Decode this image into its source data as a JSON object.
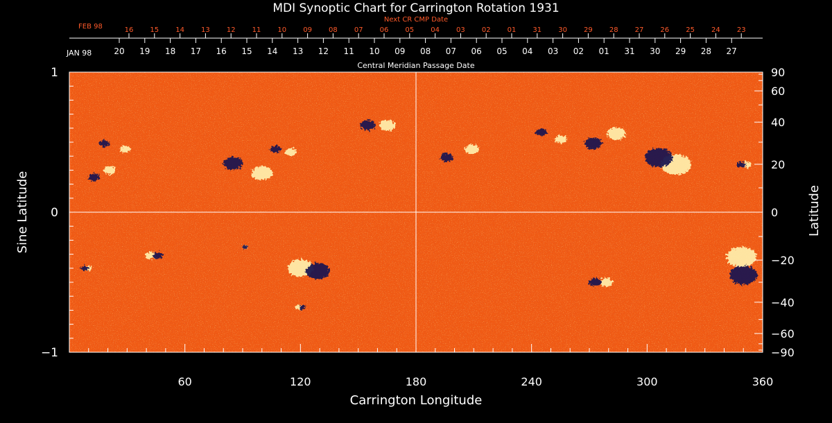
{
  "chart_data": {
    "type": "heatmap",
    "title": "MDI Synoptic Chart for Carrington Rotation 1931",
    "xlabel": "Carrington Longitude",
    "ylabel_left": "Sine Latitude",
    "ylabel_right": "Latitude",
    "xlim": [
      0,
      360
    ],
    "ylim": [
      -1,
      1
    ],
    "x_ticks": [
      60,
      120,
      180,
      240,
      300,
      360
    ],
    "y_left_ticks": [
      {
        "value": 1,
        "label": "1"
      },
      {
        "value": 0,
        "label": "0"
      },
      {
        "value": -1,
        "label": "−1"
      }
    ],
    "y_right_ticks": [
      {
        "value": 90,
        "label": "90"
      },
      {
        "value": 60,
        "label": "60"
      },
      {
        "value": 40,
        "label": "40"
      },
      {
        "value": 20,
        "label": "20"
      },
      {
        "value": 0,
        "label": "0"
      },
      {
        "value": -20,
        "label": "−20"
      },
      {
        "value": -40,
        "label": "−40"
      },
      {
        "value": -60,
        "label": "−60"
      },
      {
        "value": -90,
        "label": "−90"
      }
    ],
    "crosshair": {
      "longitude": 180,
      "sine_latitude": 0
    },
    "date_axis_label": "Central Meridian Passage Date",
    "next_cr_label": "Next CR CMP Date",
    "cmp_month_label": "JAN 98",
    "next_cr_month_label": "FEB 98",
    "cmp_dates": [
      "20",
      "19",
      "18",
      "17",
      "16",
      "15",
      "14",
      "13",
      "12",
      "11",
      "10",
      "09",
      "08",
      "07",
      "06",
      "05",
      "04",
      "03",
      "02",
      "01",
      "31",
      "30",
      "29",
      "28",
      "27"
    ],
    "next_cr_dates": [
      "16",
      "15",
      "14",
      "13",
      "12",
      "11",
      "10",
      "09",
      "08",
      "07",
      "06",
      "05",
      "04",
      "03",
      "02",
      "01",
      "31",
      "30",
      "29",
      "28",
      "27",
      "26",
      "25",
      "24",
      "23"
    ],
    "colors": {
      "background": "#000000",
      "field": "#f05a14",
      "positive": "#fff3b0",
      "negative": "#1a1850",
      "axes": "#ffffff",
      "next_cr": "#ff5a2a"
    },
    "active_regions": [
      {
        "lon": 17,
        "sinlat": 0.27,
        "pos_dx": 4,
        "pos_dy": 0.03,
        "neg_dx": -4,
        "neg_dy": -0.02,
        "size": 1.0
      },
      {
        "lon": 26,
        "sinlat": 0.45,
        "pos_dx": 3,
        "pos_dy": 0.0,
        "neg_dx": -8,
        "neg_dy": 0.04,
        "size": 0.9
      },
      {
        "lon": 97,
        "sinlat": 0.3,
        "pos_dx": 3,
        "pos_dy": -0.02,
        "neg_dx": -12,
        "neg_dy": 0.05,
        "size": 1.8
      },
      {
        "lon": 113,
        "sinlat": 0.43,
        "pos_dx": 2,
        "pos_dy": 0.0,
        "neg_dx": -6,
        "neg_dy": 0.02,
        "size": 1.0
      },
      {
        "lon": 165,
        "sinlat": 0.62,
        "pos_dx": 0,
        "pos_dy": 0.0,
        "neg_dx": -10,
        "neg_dy": 0.0,
        "size": 1.4
      },
      {
        "lon": 206,
        "sinlat": 0.47,
        "pos_dx": 3,
        "pos_dy": -0.02,
        "neg_dx": -10,
        "neg_dy": -0.08,
        "size": 1.2
      },
      {
        "lon": 250,
        "sinlat": 0.52,
        "pos_dx": 5,
        "pos_dy": 0.0,
        "neg_dx": -5,
        "neg_dy": 0.05,
        "size": 1.0
      },
      {
        "lon": 278,
        "sinlat": 0.52,
        "pos_dx": 6,
        "pos_dy": 0.04,
        "neg_dx": -6,
        "neg_dy": -0.03,
        "size": 1.6
      },
      {
        "lon": 310,
        "sinlat": 0.34,
        "pos_dx": 5,
        "pos_dy": 0.0,
        "neg_dx": -4,
        "neg_dy": 0.05,
        "size": 2.6
      },
      {
        "lon": 352,
        "sinlat": 0.34,
        "pos_dx": 0,
        "pos_dy": 0.0,
        "neg_dx": -3,
        "neg_dy": 0.0,
        "size": 0.8
      },
      {
        "lon": 44,
        "sinlat": -0.31,
        "pos_dx": -2,
        "pos_dy": 0.0,
        "neg_dx": 2,
        "neg_dy": 0.0,
        "size": 0.9
      },
      {
        "lon": 91,
        "sinlat": -0.25,
        "pos_dx": 0,
        "pos_dy": 0.0,
        "neg_dx": 0,
        "neg_dy": 0.0,
        "size": 0.5
      },
      {
        "lon": 124,
        "sinlat": -0.4,
        "pos_dx": -4,
        "pos_dy": 0.0,
        "neg_dx": 5,
        "neg_dy": -0.02,
        "size": 2.2
      },
      {
        "lon": 120,
        "sinlat": -0.68,
        "pos_dx": -1,
        "pos_dy": 0.0,
        "neg_dx": 1,
        "neg_dy": 0.0,
        "size": 0.6
      },
      {
        "lon": 276,
        "sinlat": -0.5,
        "pos_dx": 3,
        "pos_dy": 0.0,
        "neg_dx": -3,
        "neg_dy": 0.0,
        "size": 1.1
      },
      {
        "lon": 349,
        "sinlat": -0.4,
        "pos_dx": 0,
        "pos_dy": 0.08,
        "neg_dx": 1,
        "neg_dy": -0.05,
        "size": 2.6
      },
      {
        "lon": 8,
        "sinlat": -0.4,
        "pos_dx": 2,
        "pos_dy": 0.0,
        "neg_dx": 0,
        "neg_dy": 0.0,
        "size": 0.7
      }
    ]
  }
}
